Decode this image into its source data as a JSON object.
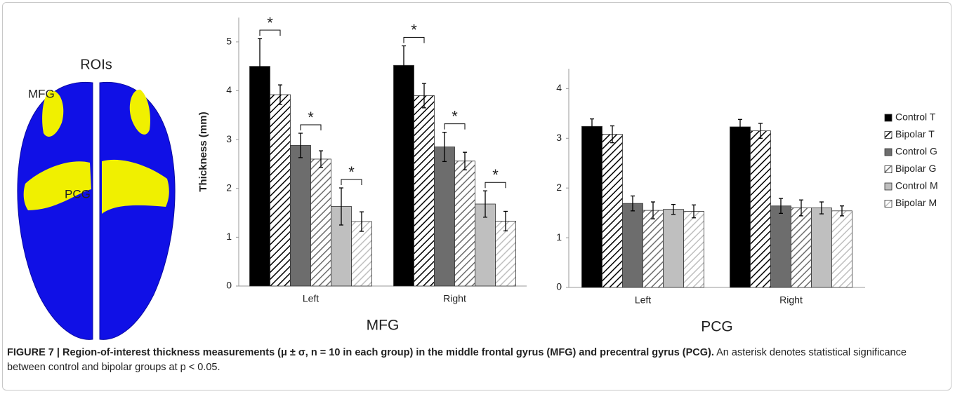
{
  "brain": {
    "title": "ROIs",
    "labels": [
      "MFG",
      "PCG"
    ]
  },
  "chart_data": [
    {
      "type": "bar",
      "xlabel": "MFG",
      "ylabel": "Thickness (mm)",
      "categories": [
        "Left",
        "Right"
      ],
      "ylim": [
        0,
        5.5
      ],
      "yticks": [
        0,
        1,
        2,
        3,
        4,
        5
      ],
      "series": [
        {
          "color": "#000000",
          "fill": "solid",
          "values": [
            4.5,
            4.52
          ],
          "errors": [
            0.57,
            0.4
          ]
        },
        {
          "color": "#000000",
          "fill": "hatch",
          "values": [
            3.92,
            3.9
          ],
          "errors": [
            0.2,
            0.25
          ]
        },
        {
          "color": "#6d6d6d",
          "fill": "solid",
          "values": [
            2.88,
            2.85
          ],
          "errors": [
            0.25,
            0.3
          ]
        },
        {
          "color": "#6d6d6d",
          "fill": "hatch",
          "values": [
            2.6,
            2.56
          ],
          "errors": [
            0.17,
            0.18
          ]
        },
        {
          "color": "#bfbfbf",
          "fill": "solid",
          "values": [
            1.63,
            1.68
          ],
          "errors": [
            0.38,
            0.27
          ]
        },
        {
          "color": "#bfbfbf",
          "fill": "hatch",
          "values": [
            1.32,
            1.33
          ],
          "errors": [
            0.2,
            0.2
          ]
        }
      ],
      "annotations": [
        "*",
        "*",
        "*",
        "*",
        "*",
        "*"
      ]
    },
    {
      "type": "bar",
      "xlabel": "PCG",
      "categories": [
        "Left",
        "Right"
      ],
      "ylim": [
        0,
        4.4
      ],
      "yticks": [
        0,
        1,
        2,
        3,
        4
      ],
      "legend": "right",
      "series": [
        {
          "name": "Control T",
          "color": "#000000",
          "fill": "solid",
          "values": [
            3.24,
            3.23
          ],
          "errors": [
            0.15,
            0.15
          ]
        },
        {
          "name": "Bipolar T",
          "color": "#000000",
          "fill": "hatch",
          "values": [
            3.08,
            3.15
          ],
          "errors": [
            0.17,
            0.15
          ]
        },
        {
          "name": "Control G",
          "color": "#6d6d6d",
          "fill": "solid",
          "values": [
            1.69,
            1.64
          ],
          "errors": [
            0.15,
            0.15
          ]
        },
        {
          "name": "Bipolar G",
          "color": "#6d6d6d",
          "fill": "hatch",
          "values": [
            1.55,
            1.6
          ],
          "errors": [
            0.17,
            0.16
          ]
        },
        {
          "name": "Control M",
          "color": "#bfbfbf",
          "fill": "solid",
          "values": [
            1.57,
            1.6
          ],
          "errors": [
            0.1,
            0.12
          ]
        },
        {
          "name": "Bipolar M",
          "color": "#bfbfbf",
          "fill": "hatch",
          "values": [
            1.53,
            1.54
          ],
          "errors": [
            0.13,
            0.1
          ]
        }
      ]
    }
  ],
  "caption": {
    "title": "FIGURE 7 | Region-of-interest thickness measurements (μ ± σ, n = 10 in each group) in the middle frontal gyrus (MFG) and precentral gyrus (PCG).",
    "text": "An asterisk denotes statistical significance between control and bipolar groups at p < 0.05."
  }
}
